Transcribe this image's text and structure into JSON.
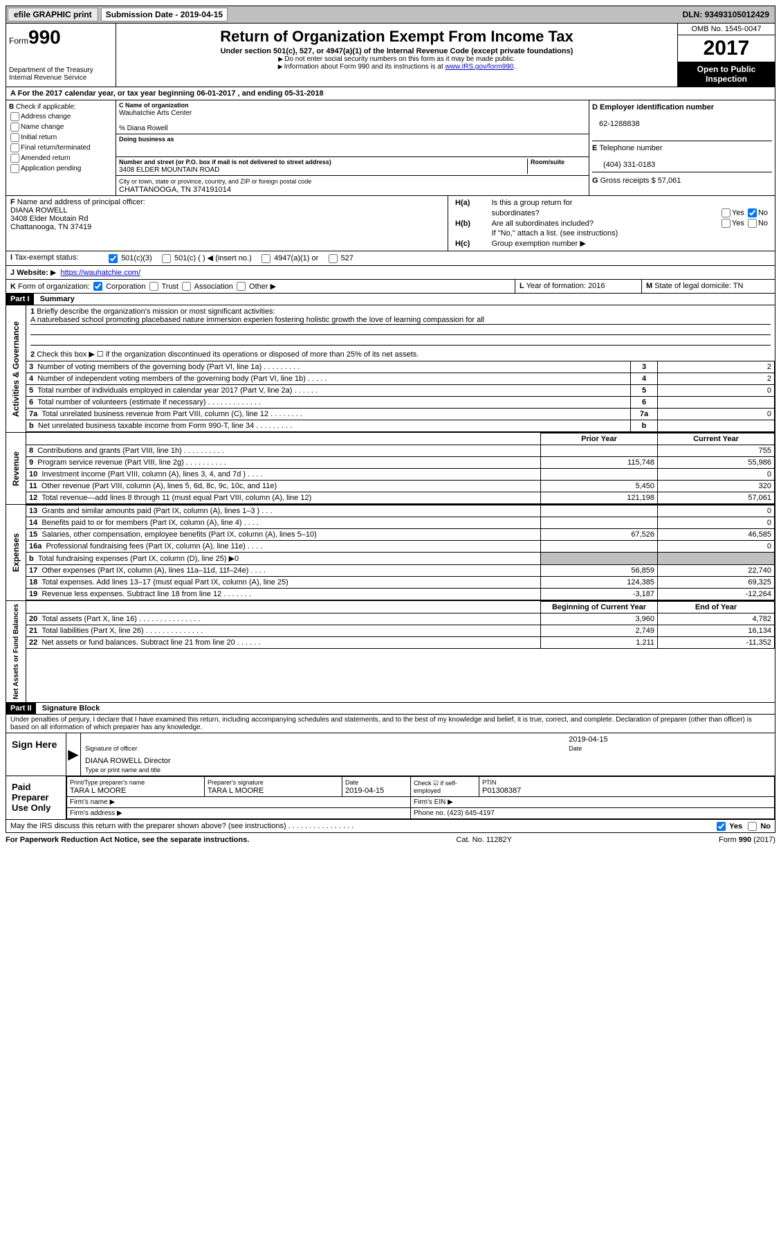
{
  "topbar": {
    "efile": "efile GRAPHIC print",
    "sub_label": "Submission Date - ",
    "sub_date": "2019-04-15",
    "dln_label": "DLN: ",
    "dln": "93493105012429"
  },
  "header": {
    "form_word": "Form",
    "form_num": "990",
    "dept": "Department of the Treasury",
    "irs": "Internal Revenue Service",
    "title": "Return of Organization Exempt From Income Tax",
    "subtitle": "Under section 501(c), 527, or 4947(a)(1) of the Internal Revenue Code (except private foundations)",
    "note1": "Do not enter social security numbers on this form as it may be made public.",
    "note2": "Information about Form 990 and its instructions is at ",
    "note2_link": "www.IRS.gov/form990",
    "omb": "OMB No. 1545-0047",
    "year": "2017",
    "inspect": "Open to Public Inspection"
  },
  "A": {
    "text": "For the 2017 calendar year, or tax year beginning 06-01-2017   , and ending 05-31-2018"
  },
  "B": {
    "label": "Check if applicable:",
    "items": [
      "Address change",
      "Name change",
      "Initial return",
      "Final return/terminated",
      "Amended return",
      "Application pending"
    ]
  },
  "C": {
    "name_lbl": "Name of organization",
    "name": "Wauhatchie Arts Center",
    "care_of": "% Diana Rowell",
    "dba_lbl": "Doing business as",
    "dba": "",
    "street_lbl": "Number and street (or P.O. box if mail is not delivered to street address)",
    "room_lbl": "Room/suite",
    "street": "3408 ELDER MOUNTAIN ROAD",
    "city_lbl": "City or town, state or province, country, and ZIP or foreign postal code",
    "city": "CHATTANOOGA, TN  374191014"
  },
  "D": {
    "lbl": "Employer identification number",
    "val": "62-1288838"
  },
  "E": {
    "lbl": "Telephone number",
    "val": "(404) 331-0183"
  },
  "G": {
    "lbl": "Gross receipts $ ",
    "val": "57,061"
  },
  "F": {
    "lbl": "Name and address of principal officer:",
    "name": "DIANA ROWELL",
    "addr1": "3408 Elder Moutain Rd",
    "addr2": "Chattanooga, TN  37419"
  },
  "H": {
    "a": "Is this a group return for",
    "a2": "subordinates?",
    "a_yes": "Yes",
    "a_no": "No",
    "b": "Are all subordinates included?",
    "b_yes": "Yes",
    "b_no": "No",
    "b_note": "If \"No,\" attach a list. (see instructions)",
    "c": "Group exemption number"
  },
  "I": {
    "lbl": "Tax-exempt status:",
    "o1": "501(c)(3)",
    "o2": "501(c) (  )",
    "o2b": "(insert no.)",
    "o3": "4947(a)(1) or",
    "o4": "527"
  },
  "J": {
    "lbl": "Website:",
    "val": "https://wauhatchie.com/"
  },
  "K": {
    "lbl": "Form of organization:",
    "o1": "Corporation",
    "o2": "Trust",
    "o3": "Association",
    "o4": "Other"
  },
  "L": {
    "lbl": "Year of formation: ",
    "val": "2016"
  },
  "M": {
    "lbl": "State of legal domicile: ",
    "val": "TN"
  },
  "part1": {
    "bar": "Part I",
    "title": "Summary"
  },
  "gov": {
    "side": "Activities & Governance",
    "l1": "Briefly describe the organization's mission or most significant activities:",
    "l1v": "A naturebased school promoting placebased nature immersion experien fostering holistic growth the love of learning compassion for all",
    "l2": "Check this box ▶ ☐  if the organization discontinued its operations or disposed of more than 25% of its net assets.",
    "rows": [
      {
        "n": "3",
        "d": "Number of voting members of the governing body (Part VI, line 1a)  .   .   .   .   .   .   .   .   .",
        "v": "2"
      },
      {
        "n": "4",
        "d": "Number of independent voting members of the governing body (Part VI, line 1b)   .   .   .   .   .",
        "v": "2"
      },
      {
        "n": "5",
        "d": "Total number of individuals employed in calendar year 2017 (Part V, line 2a)  .   .   .   .   .   .",
        "v": "0"
      },
      {
        "n": "6",
        "d": "Total number of volunteers (estimate if necessary)   .   .   .   .   .   .   .   .   .   .   .   .   .",
        "v": ""
      },
      {
        "n": "7a",
        "d": "Total unrelated business revenue from Part VIII, column (C), line 12  .   .   .   .   .   .   .   .",
        "v": "0"
      },
      {
        "n": "b",
        "d": "Net unrelated business taxable income from Form 990-T, line 34   .   .   .   .   .   .   .   .   .",
        "v": ""
      }
    ]
  },
  "rev": {
    "side": "Revenue",
    "h1": "Prior Year",
    "h2": "Current Year",
    "rows": [
      {
        "n": "8",
        "d": "Contributions and grants (Part VIII, line 1h)   .   .   .   .   .   .   .   .   .   .",
        "p": "",
        "c": "755"
      },
      {
        "n": "9",
        "d": "Program service revenue (Part VIII, line 2g)   .   .   .   .   .   .   .   .   .   .",
        "p": "115,748",
        "c": "55,986"
      },
      {
        "n": "10",
        "d": "Investment income (Part VIII, column (A), lines 3, 4, and 7d )   .   .   .   .",
        "p": "",
        "c": "0"
      },
      {
        "n": "11",
        "d": "Other revenue (Part VIII, column (A), lines 5, 6d, 8c, 9c, 10c, and 11e)",
        "p": "5,450",
        "c": "320"
      },
      {
        "n": "12",
        "d": "Total revenue—add lines 8 through 11 (must equal Part VIII, column (A), line 12)",
        "p": "121,198",
        "c": "57,061"
      }
    ]
  },
  "exp": {
    "side": "Expenses",
    "rows": [
      {
        "n": "13",
        "d": "Grants and similar amounts paid (Part IX, column (A), lines 1–3 )   .   .   .",
        "p": "",
        "c": "0"
      },
      {
        "n": "14",
        "d": "Benefits paid to or for members (Part IX, column (A), line 4)   .   .   .   .",
        "p": "",
        "c": "0"
      },
      {
        "n": "15",
        "d": "Salaries, other compensation, employee benefits (Part IX, column (A), lines 5–10)",
        "p": "67,526",
        "c": "46,585"
      },
      {
        "n": "16a",
        "d": "Professional fundraising fees (Part IX, column (A), line 11e)   .   .   .   .",
        "p": "",
        "c": "0"
      },
      {
        "n": "b",
        "d": "Total fundraising expenses (Part IX, column (D), line 25) ▶0",
        "p": "shade",
        "c": "shade"
      },
      {
        "n": "17",
        "d": "Other expenses (Part IX, column (A), lines 11a–11d, 11f–24e)   .   .   .   .",
        "p": "56,859",
        "c": "22,740"
      },
      {
        "n": "18",
        "d": "Total expenses. Add lines 13–17 (must equal Part IX, column (A), line 25)",
        "p": "124,385",
        "c": "69,325"
      },
      {
        "n": "19",
        "d": "Revenue less expenses. Subtract line 18 from line 12  .   .   .   .   .   .   .",
        "p": "-3,187",
        "c": "-12,264"
      }
    ]
  },
  "net": {
    "side": "Net Assets or Fund Balances",
    "h1": "Beginning of Current Year",
    "h2": "End of Year",
    "rows": [
      {
        "n": "20",
        "d": "Total assets (Part X, line 16)  .   .   .   .   .   .   .   .   .   .   .   .   .   .   .",
        "p": "3,960",
        "c": "4,782"
      },
      {
        "n": "21",
        "d": "Total liabilities (Part X, line 26)   .   .   .   .   .   .   .   .   .   .   .   .   .   .",
        "p": "2,749",
        "c": "16,134"
      },
      {
        "n": "22",
        "d": "Net assets or fund balances. Subtract line 21 from line 20 .   .   .   .   .   .",
        "p": "1,211",
        "c": "-11,352"
      }
    ]
  },
  "part2": {
    "bar": "Part II",
    "title": "Signature Block",
    "perjury": "Under penalties of perjury, I declare that I have examined this return, including accompanying schedules and statements, and to the best of my knowledge and belief, it is true, correct, and complete. Declaration of preparer (other than officer) is based on all information of which preparer has any knowledge."
  },
  "sign": {
    "here": "Sign Here",
    "sig_lbl": "Signature of officer",
    "date": "2019-04-15",
    "date_lbl": "Date",
    "name": "DIANA ROWELL  Director",
    "name_lbl": "Type or print name and title"
  },
  "paid": {
    "here": "Paid Preparer Use Only",
    "prep_lbl": "Print/Type preparer's name",
    "prep": "TARA L MOORE",
    "sig_lbl": "Preparer's signature",
    "sig": "TARA L MOORE",
    "date_lbl": "Date",
    "date": "2019-04-15",
    "self_lbl": "Check ☑ if self-employed",
    "ptin_lbl": "PTIN",
    "ptin": "P01308387",
    "firm_name_lbl": "Firm's name  ▶",
    "firm_ein_lbl": "Firm's EIN ▶",
    "firm_addr_lbl": "Firm's address ▶",
    "phone_lbl": "Phone no. ",
    "phone": "(423) 645-4197"
  },
  "discuss": {
    "q": "May the IRS discuss this return with the preparer shown above? (see instructions)   .   .   .   .   .   .   .   .   .   .   .   .   .   .   .   .",
    "yes": "Yes",
    "no": "No"
  },
  "footer": {
    "left": "For Paperwork Reduction Act Notice, see the separate instructions.",
    "mid": "Cat. No. 11282Y",
    "right": "Form 990 (2017)"
  }
}
